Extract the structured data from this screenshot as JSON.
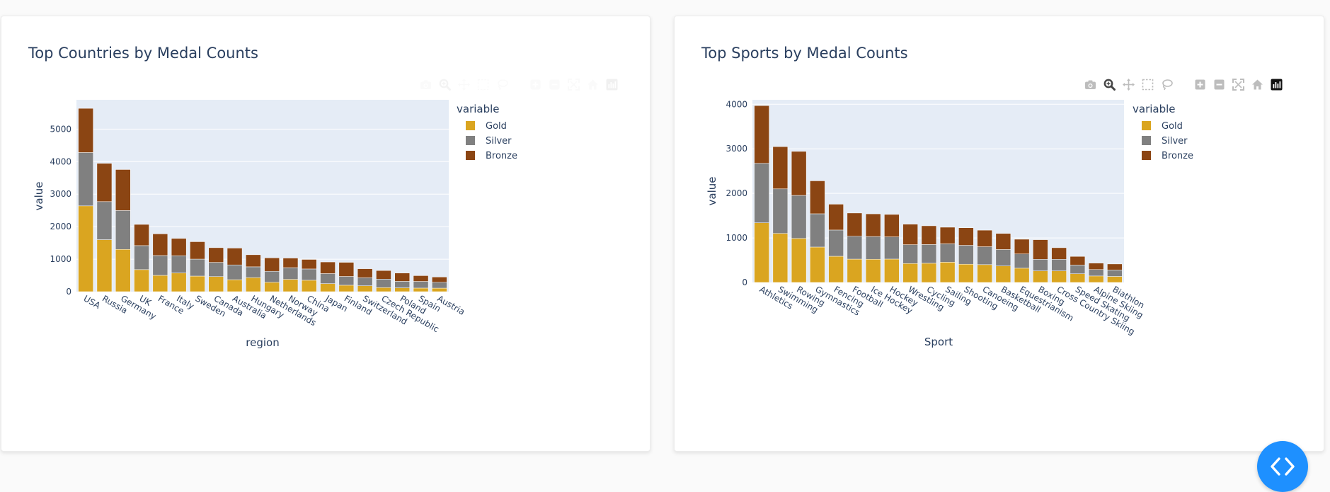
{
  "chart_data": [
    {
      "type": "bar",
      "barmode": "stack",
      "title": "Top Countries by Medal Counts",
      "xlabel": "region",
      "ylabel": "value",
      "legend_title": "variable",
      "legend_placement": "right",
      "ylim": [
        0,
        5900
      ],
      "yticks": [
        0,
        1000,
        2000,
        3000,
        4000,
        5000
      ],
      "categories": [
        "USA",
        "Russia",
        "Germany",
        "UK",
        "France",
        "Italy",
        "Sweden",
        "Canada",
        "Australia",
        "Hungary",
        "Netherlands",
        "Norway",
        "China",
        "Japan",
        "Finland",
        "Switzerland",
        "Czech Republic",
        "Poland",
        "Spain",
        "Austria"
      ],
      "series": [
        {
          "name": "Gold",
          "color": "#daa520",
          "values": [
            2638,
            1599,
            1301,
            678,
            501,
            575,
            479,
            463,
            368,
            432,
            287,
            378,
            351,
            247,
            198,
            181,
            125,
            117,
            110,
            108
          ]
        },
        {
          "name": "Silver",
          "color": "#808080",
          "values": [
            1641,
            1170,
            1195,
            739,
            610,
            531,
            522,
            438,
            455,
            332,
            340,
            361,
            347,
            309,
            270,
            248,
            261,
            200,
            205,
            181
          ]
        },
        {
          "name": "Bronze",
          "color": "#8b4513",
          "values": [
            1358,
            1178,
            1260,
            651,
            666,
            531,
            535,
            451,
            517,
            371,
            413,
            294,
            293,
            357,
            434,
            276,
            264,
            256,
            177,
            162
          ]
        }
      ]
    },
    {
      "type": "bar",
      "barmode": "stack",
      "title": "Top Sports by Medal Counts",
      "xlabel": "Sport",
      "ylabel": "value",
      "legend_title": "variable",
      "legend_placement": "right",
      "ylim": [
        0,
        4100
      ],
      "yticks": [
        0,
        1000,
        2000,
        3000,
        4000
      ],
      "categories": [
        "Athletics",
        "Swimming",
        "Rowing",
        "Gymnastics",
        "Fencing",
        "Football",
        "Ice Hockey",
        "Hockey",
        "Wrestling",
        "Cycling",
        "Sailing",
        "Shooting",
        "Canoeing",
        "Basketball",
        "Equestrianism",
        "Boxing",
        "Cross Country Skiing",
        "Speed Skating",
        "Alpine Skiing",
        "Biathlon"
      ],
      "series": [
        {
          "name": "Gold",
          "color": "#daa520",
          "values": [
            1339,
            1101,
            988,
            795,
            588,
            524,
            521,
            525,
            425,
            431,
            455,
            410,
            400,
            370,
            320,
            260,
            260,
            195,
            145,
            135
          ]
        },
        {
          "name": "Silver",
          "color": "#808080",
          "values": [
            1336,
            1000,
            966,
            747,
            589,
            513,
            510,
            498,
            423,
            421,
            413,
            424,
            402,
            370,
            320,
            260,
            260,
            195,
            145,
            145
          ]
        },
        {
          "name": "Bronze",
          "color": "#8b4513",
          "values": [
            1295,
            948,
            988,
            739,
            580,
            522,
            509,
            504,
            460,
            420,
            372,
            394,
            372,
            360,
            330,
            440,
            260,
            195,
            145,
            135
          ]
        }
      ]
    }
  ],
  "modebar_icons": [
    "camera-icon",
    "zoom-icon",
    "pan-icon",
    "box-select-icon",
    "lasso-select-icon",
    "zoom-in-icon",
    "zoom-out-icon",
    "autoscale-icon",
    "reset-axes-icon",
    "plotly-logo-icon"
  ],
  "fab": {
    "icon": "code-icon",
    "color": "#1e90ff"
  }
}
